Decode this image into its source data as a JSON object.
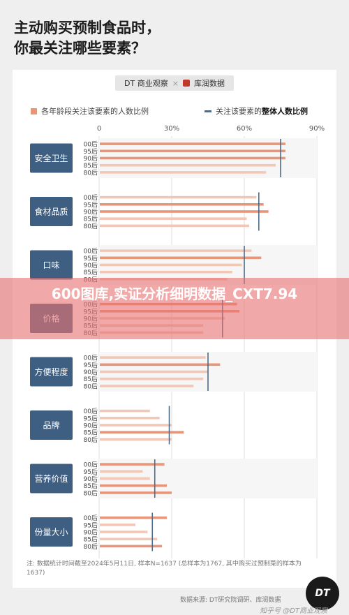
{
  "title_lines": [
    "主动购买预制食品时，",
    "你最关注哪些要素？"
  ],
  "brand": {
    "left": "DT 商业观察",
    "sep": "×",
    "right": "库润数据"
  },
  "legend": {
    "bar_label": "各年龄段关注该要素的人数比例",
    "line_prefix": "关注该要素的",
    "line_bold": "整体人数比例"
  },
  "chart_data": {
    "type": "bar",
    "orientation": "horizontal",
    "x_ticks": [
      "0",
      "30%",
      "60%",
      "90%"
    ],
    "xlim": [
      0,
      90
    ],
    "age_groups": [
      "00后",
      "95后",
      "90后",
      "85后",
      "80后"
    ],
    "categories": [
      {
        "name": "安全卫生",
        "values": [
          77,
          77,
          77,
          73,
          69
        ],
        "overall": 75
      },
      {
        "name": "食材品质",
        "values": [
          65,
          68,
          70,
          61,
          62
        ],
        "overall": 66
      },
      {
        "name": "口味",
        "values": [
          63,
          67,
          59,
          55,
          53
        ],
        "overall": 60
      },
      {
        "name": "价格",
        "values": [
          57,
          58,
          52,
          43,
          43
        ],
        "overall": 51
      },
      {
        "name": "方便程度",
        "values": [
          44,
          50,
          45,
          43,
          39
        ],
        "overall": 45
      },
      {
        "name": "品牌",
        "values": [
          21,
          25,
          30,
          35,
          30
        ],
        "overall": 29
      },
      {
        "name": "营养价值",
        "values": [
          27,
          18,
          21,
          28,
          30
        ],
        "overall": 23
      },
      {
        "name": "份量大小",
        "values": [
          28,
          15,
          20,
          24,
          26
        ],
        "overall": 22
      }
    ],
    "colors": {
      "bar_highlight": "#e8967a",
      "bar_light": "#f2c7b6",
      "overall_line": "#4f6b85",
      "label_box": "#3f5f82"
    }
  },
  "note": "注: 数据统计时间截至2024年5月11日, 样本N=1637 (总样本为1767, 其中购买过预制菜的样本为1637)",
  "source": "数据来源: DT研究院调研、库润数据",
  "banner_text": "600图库,实证分析细明数据_CXT7.94",
  "badge": "DT",
  "watermark": "知乎号 @DT商业观察"
}
